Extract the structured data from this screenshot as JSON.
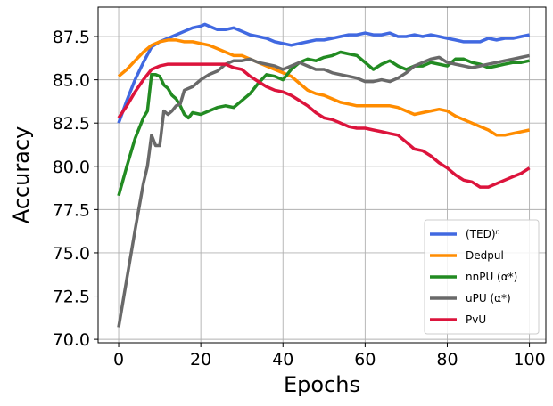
{
  "chart_data": {
    "type": "line",
    "title": "",
    "xlabel": "Epochs",
    "ylabel": "Accuracy",
    "xlim": [
      -5,
      104
    ],
    "ylim": [
      69.8,
      89.2
    ],
    "grid": true,
    "legend_position": "lower-right",
    "x_ticks": [
      0,
      20,
      40,
      60,
      80,
      100
    ],
    "x_tick_labels": [
      "0",
      "20",
      "40",
      "60",
      "80",
      "100"
    ],
    "y_ticks": [
      70.0,
      72.5,
      75.0,
      77.5,
      80.0,
      82.5,
      85.0,
      87.5
    ],
    "y_tick_labels": [
      "70.0",
      "72.5",
      "75.0",
      "77.5",
      "80.0",
      "82.5",
      "85.0",
      "87.5"
    ],
    "series": [
      {
        "name": "(TED)",
        "name_superscript": "n",
        "color": "#4169e1",
        "x": [
          0,
          2,
          4,
          6,
          8,
          10,
          12,
          14,
          16,
          18,
          20,
          21,
          22,
          24,
          26,
          28,
          30,
          32,
          34,
          36,
          38,
          40,
          42,
          44,
          46,
          48,
          50,
          52,
          54,
          56,
          58,
          60,
          62,
          64,
          66,
          68,
          70,
          72,
          74,
          76,
          78,
          80,
          82,
          84,
          86,
          88,
          90,
          92,
          94,
          96,
          98,
          100
        ],
        "values": [
          82.5,
          83.8,
          85.0,
          86.0,
          86.9,
          87.2,
          87.4,
          87.6,
          87.8,
          88.0,
          88.1,
          88.2,
          88.1,
          87.9,
          87.9,
          88.0,
          87.8,
          87.6,
          87.5,
          87.4,
          87.2,
          87.1,
          87.0,
          87.1,
          87.2,
          87.3,
          87.3,
          87.4,
          87.5,
          87.6,
          87.6,
          87.7,
          87.6,
          87.6,
          87.7,
          87.5,
          87.5,
          87.6,
          87.5,
          87.6,
          87.5,
          87.4,
          87.3,
          87.2,
          87.2,
          87.2,
          87.4,
          87.3,
          87.4,
          87.4,
          87.5,
          87.6
        ]
      },
      {
        "name": "Dedpul",
        "name_superscript": "",
        "color": "#ff8c00",
        "x": [
          0,
          2,
          4,
          6,
          8,
          10,
          12,
          14,
          16,
          18,
          20,
          22,
          24,
          26,
          28,
          30,
          32,
          34,
          36,
          38,
          40,
          42,
          44,
          46,
          48,
          50,
          52,
          54,
          56,
          58,
          60,
          62,
          64,
          66,
          68,
          70,
          72,
          74,
          76,
          78,
          80,
          82,
          84,
          86,
          88,
          90,
          92,
          94,
          96,
          98,
          100
        ],
        "values": [
          85.2,
          85.6,
          86.1,
          86.6,
          87.0,
          87.2,
          87.3,
          87.3,
          87.2,
          87.2,
          87.1,
          87.0,
          86.8,
          86.6,
          86.4,
          86.4,
          86.2,
          86.0,
          85.8,
          85.6,
          85.4,
          85.2,
          84.8,
          84.4,
          84.2,
          84.1,
          83.9,
          83.7,
          83.6,
          83.5,
          83.5,
          83.5,
          83.5,
          83.5,
          83.4,
          83.2,
          83.0,
          83.1,
          83.2,
          83.3,
          83.2,
          82.9,
          82.7,
          82.5,
          82.3,
          82.1,
          81.8,
          81.8,
          81.9,
          82.0,
          82.1
        ]
      },
      {
        "name": "nnPU (α*)",
        "name_superscript": "",
        "color": "#228b22",
        "x": [
          0,
          2,
          4,
          6,
          7,
          8,
          9,
          10,
          11,
          12,
          13,
          14,
          15,
          16,
          17,
          18,
          20,
          22,
          24,
          26,
          28,
          30,
          32,
          34,
          36,
          38,
          40,
          42,
          44,
          46,
          48,
          50,
          52,
          54,
          56,
          58,
          60,
          62,
          64,
          66,
          68,
          70,
          72,
          74,
          76,
          78,
          80,
          82,
          84,
          86,
          88,
          90,
          92,
          94,
          96,
          98,
          100
        ],
        "values": [
          78.3,
          80.0,
          81.6,
          82.8,
          83.2,
          85.3,
          85.3,
          85.2,
          84.7,
          84.5,
          84.1,
          83.9,
          83.5,
          83.0,
          82.8,
          83.1,
          83.0,
          83.2,
          83.4,
          83.5,
          83.4,
          83.8,
          84.2,
          84.8,
          85.3,
          85.2,
          85.0,
          85.6,
          86.0,
          86.2,
          86.1,
          86.3,
          86.4,
          86.6,
          86.5,
          86.4,
          86.0,
          85.6,
          85.9,
          86.1,
          85.8,
          85.6,
          85.8,
          85.8,
          86.0,
          85.9,
          85.8,
          86.2,
          86.2,
          86.0,
          85.9,
          85.7,
          85.8,
          85.9,
          86.0,
          86.0,
          86.1
        ]
      },
      {
        "name": "uPU (α*)",
        "name_superscript": "",
        "color": "#696969",
        "x": [
          0,
          2,
          4,
          6,
          7,
          8,
          9,
          10,
          11,
          12,
          13,
          14,
          15,
          16,
          18,
          20,
          22,
          24,
          26,
          28,
          30,
          32,
          34,
          36,
          38,
          40,
          42,
          44,
          46,
          48,
          50,
          52,
          54,
          56,
          58,
          60,
          62,
          64,
          66,
          68,
          70,
          72,
          74,
          76,
          78,
          80,
          82,
          84,
          86,
          88,
          90,
          92,
          94,
          96,
          98,
          100
        ],
        "values": [
          70.7,
          73.5,
          76.3,
          79.0,
          80.0,
          81.8,
          81.2,
          81.2,
          83.2,
          83.0,
          83.2,
          83.5,
          83.6,
          84.4,
          84.6,
          85.0,
          85.3,
          85.5,
          85.9,
          86.1,
          86.1,
          86.2,
          86.0,
          85.9,
          85.8,
          85.6,
          85.8,
          86.0,
          85.8,
          85.6,
          85.6,
          85.4,
          85.3,
          85.2,
          85.1,
          84.9,
          84.9,
          85.0,
          84.9,
          85.1,
          85.4,
          85.8,
          86.0,
          86.2,
          86.3,
          86.0,
          85.9,
          85.8,
          85.7,
          85.8,
          85.9,
          86.0,
          86.1,
          86.2,
          86.3,
          86.4
        ]
      },
      {
        "name": "PvU",
        "name_superscript": "",
        "color": "#dc143c",
        "x": [
          0,
          2,
          4,
          6,
          8,
          10,
          12,
          14,
          16,
          18,
          20,
          22,
          24,
          26,
          28,
          30,
          32,
          34,
          36,
          38,
          40,
          42,
          44,
          46,
          48,
          50,
          52,
          54,
          56,
          58,
          60,
          62,
          64,
          66,
          68,
          70,
          72,
          74,
          76,
          78,
          80,
          82,
          84,
          86,
          88,
          90,
          92,
          94,
          96,
          98,
          100
        ],
        "values": [
          82.8,
          83.5,
          84.3,
          85.0,
          85.6,
          85.8,
          85.9,
          85.9,
          85.9,
          85.9,
          85.9,
          85.9,
          85.9,
          85.9,
          85.7,
          85.6,
          85.2,
          84.9,
          84.6,
          84.4,
          84.3,
          84.1,
          83.8,
          83.5,
          83.1,
          82.8,
          82.7,
          82.5,
          82.3,
          82.2,
          82.2,
          82.1,
          82.0,
          81.9,
          81.8,
          81.4,
          81.0,
          80.9,
          80.6,
          80.2,
          79.9,
          79.5,
          79.2,
          79.1,
          78.8,
          78.8,
          79.0,
          79.2,
          79.4,
          79.6,
          79.9
        ]
      }
    ]
  }
}
